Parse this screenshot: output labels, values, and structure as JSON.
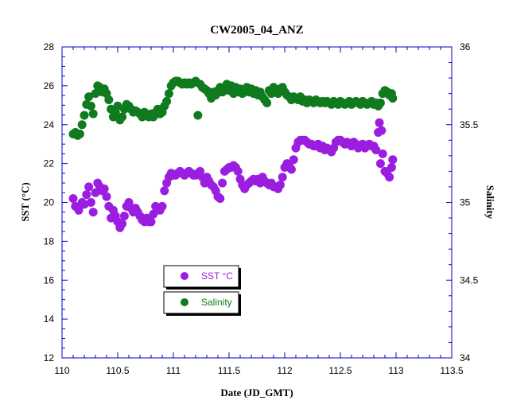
{
  "chart_data": {
    "type": "scatter",
    "title": "CW2005_04_ANZ",
    "xlabel": "Date (JD_GMT)",
    "ylabel_left": "SST (°C)",
    "ylabel_right": "Salinity",
    "xlim": [
      110,
      113.5
    ],
    "ylim_left": [
      12,
      28
    ],
    "ylim_right": [
      34,
      36
    ],
    "x_ticks": [
      "110",
      "110.5",
      "111",
      "111.5",
      "112",
      "112.5",
      "113",
      "113.5"
    ],
    "y_left_ticks": [
      "12",
      "14",
      "16",
      "18",
      "20",
      "22",
      "24",
      "26",
      "28"
    ],
    "y_right_ticks": [
      "34",
      "34.5",
      "35",
      "35.5",
      "36"
    ],
    "grid": false,
    "series": [
      {
        "name": "SST °C",
        "axis": "left",
        "color": "#9b1ee0",
        "points": [
          [
            110.1,
            20.2
          ],
          [
            110.12,
            19.8
          ],
          [
            110.15,
            19.6
          ],
          [
            110.18,
            20.0
          ],
          [
            110.2,
            19.9
          ],
          [
            110.22,
            20.4
          ],
          [
            110.24,
            20.8
          ],
          [
            110.26,
            20.0
          ],
          [
            110.28,
            19.5
          ],
          [
            110.3,
            20.5
          ],
          [
            110.32,
            21.0
          ],
          [
            110.34,
            20.8
          ],
          [
            110.36,
            20.6
          ],
          [
            110.38,
            20.7
          ],
          [
            110.4,
            20.3
          ],
          [
            110.42,
            19.8
          ],
          [
            110.44,
            19.2
          ],
          [
            110.46,
            19.6
          ],
          [
            110.48,
            19.3
          ],
          [
            110.5,
            19.0
          ],
          [
            110.52,
            18.7
          ],
          [
            110.54,
            18.9
          ],
          [
            110.56,
            19.3
          ],
          [
            110.58,
            19.8
          ],
          [
            110.6,
            20.0
          ],
          [
            110.62,
            19.7
          ],
          [
            110.64,
            19.5
          ],
          [
            110.66,
            19.7
          ],
          [
            110.68,
            19.5
          ],
          [
            110.7,
            19.3
          ],
          [
            110.72,
            19.1
          ],
          [
            110.74,
            19.0
          ],
          [
            110.76,
            19.2
          ],
          [
            110.78,
            19.0
          ],
          [
            110.8,
            19.0
          ],
          [
            110.82,
            19.4
          ],
          [
            110.84,
            19.8
          ],
          [
            110.86,
            19.7
          ],
          [
            110.88,
            19.6
          ],
          [
            110.9,
            19.8
          ],
          [
            110.92,
            20.6
          ],
          [
            110.94,
            21.0
          ],
          [
            110.96,
            21.3
          ],
          [
            110.98,
            21.5
          ],
          [
            111.0,
            21.4
          ],
          [
            111.02,
            21.4
          ],
          [
            111.04,
            21.5
          ],
          [
            111.06,
            21.6
          ],
          [
            111.08,
            21.5
          ],
          [
            111.1,
            21.4
          ],
          [
            111.12,
            21.5
          ],
          [
            111.14,
            21.6
          ],
          [
            111.16,
            21.5
          ],
          [
            111.18,
            21.4
          ],
          [
            111.2,
            21.4
          ],
          [
            111.22,
            21.5
          ],
          [
            111.24,
            21.6
          ],
          [
            111.26,
            21.3
          ],
          [
            111.28,
            21.0
          ],
          [
            111.3,
            21.3
          ],
          [
            111.32,
            21.1
          ],
          [
            111.34,
            20.9
          ],
          [
            111.36,
            20.8
          ],
          [
            111.38,
            20.6
          ],
          [
            111.4,
            20.3
          ],
          [
            111.42,
            20.2
          ],
          [
            111.44,
            21.0
          ],
          [
            111.46,
            21.6
          ],
          [
            111.48,
            21.7
          ],
          [
            111.5,
            21.8
          ],
          [
            111.52,
            21.8
          ],
          [
            111.54,
            21.9
          ],
          [
            111.56,
            21.8
          ],
          [
            111.58,
            21.6
          ],
          [
            111.6,
            21.2
          ],
          [
            111.62,
            20.9
          ],
          [
            111.64,
            20.7
          ],
          [
            111.66,
            20.9
          ],
          [
            111.68,
            21.0
          ],
          [
            111.7,
            21.1
          ],
          [
            111.72,
            21.2
          ],
          [
            111.74,
            21.1
          ],
          [
            111.76,
            21.2
          ],
          [
            111.78,
            21.0
          ],
          [
            111.8,
            21.3
          ],
          [
            111.82,
            21.1
          ],
          [
            111.84,
            21.0
          ],
          [
            111.86,
            20.9
          ],
          [
            111.88,
            21.0
          ],
          [
            111.9,
            20.8
          ],
          [
            111.92,
            20.8
          ],
          [
            111.94,
            20.7
          ],
          [
            111.96,
            20.9
          ],
          [
            111.98,
            21.3
          ],
          [
            112.0,
            21.8
          ],
          [
            112.02,
            22.0
          ],
          [
            112.04,
            21.9
          ],
          [
            112.06,
            21.7
          ],
          [
            112.08,
            22.2
          ],
          [
            112.1,
            22.8
          ],
          [
            112.12,
            23.1
          ],
          [
            112.14,
            23.2
          ],
          [
            112.16,
            23.2
          ],
          [
            112.18,
            23.2
          ],
          [
            112.2,
            23.1
          ],
          [
            112.22,
            23.0
          ],
          [
            112.24,
            23.0
          ],
          [
            112.26,
            22.9
          ],
          [
            112.28,
            22.9
          ],
          [
            112.3,
            23.0
          ],
          [
            112.32,
            22.8
          ],
          [
            112.34,
            22.9
          ],
          [
            112.36,
            22.7
          ],
          [
            112.38,
            22.8
          ],
          [
            112.4,
            22.7
          ],
          [
            112.42,
            22.6
          ],
          [
            112.44,
            22.8
          ],
          [
            112.46,
            23.1
          ],
          [
            112.48,
            23.2
          ],
          [
            112.5,
            23.2
          ],
          [
            112.52,
            23.1
          ],
          [
            112.54,
            23.0
          ],
          [
            112.56,
            23.1
          ],
          [
            112.58,
            23.0
          ],
          [
            112.6,
            22.9
          ],
          [
            112.62,
            23.1
          ],
          [
            112.64,
            23.0
          ],
          [
            112.66,
            22.8
          ],
          [
            112.68,
            22.9
          ],
          [
            112.7,
            23.0
          ],
          [
            112.72,
            22.8
          ],
          [
            112.74,
            22.9
          ],
          [
            112.76,
            23.0
          ],
          [
            112.78,
            22.9
          ],
          [
            112.8,
            22.9
          ],
          [
            112.82,
            22.7
          ],
          [
            112.84,
            23.6
          ],
          [
            112.85,
            24.1
          ],
          [
            112.86,
            22.0
          ],
          [
            112.87,
            23.7
          ],
          [
            112.88,
            22.5
          ],
          [
            112.9,
            21.6
          ],
          [
            112.92,
            21.5
          ],
          [
            112.94,
            21.3
          ],
          [
            112.96,
            21.8
          ],
          [
            112.97,
            22.2
          ]
        ]
      },
      {
        "name": "Salinity",
        "axis": "right",
        "color": "#0f7a1e",
        "points": [
          [
            110.1,
            35.44
          ],
          [
            110.12,
            35.45
          ],
          [
            110.14,
            35.43
          ],
          [
            110.16,
            35.44
          ],
          [
            110.18,
            35.5
          ],
          [
            110.2,
            35.56
          ],
          [
            110.22,
            35.63
          ],
          [
            110.24,
            35.68
          ],
          [
            110.26,
            35.62
          ],
          [
            110.28,
            35.57
          ],
          [
            110.3,
            35.7
          ],
          [
            110.32,
            35.75
          ],
          [
            110.34,
            35.74
          ],
          [
            110.36,
            35.71
          ],
          [
            110.38,
            35.73
          ],
          [
            110.4,
            35.7
          ],
          [
            110.42,
            35.66
          ],
          [
            110.44,
            35.6
          ],
          [
            110.46,
            35.55
          ],
          [
            110.48,
            35.58
          ],
          [
            110.5,
            35.62
          ],
          [
            110.52,
            35.53
          ],
          [
            110.54,
            35.55
          ],
          [
            110.56,
            35.6
          ],
          [
            110.58,
            35.63
          ],
          [
            110.6,
            35.62
          ],
          [
            110.62,
            35.6
          ],
          [
            110.64,
            35.58
          ],
          [
            110.66,
            35.59
          ],
          [
            110.68,
            35.58
          ],
          [
            110.7,
            35.57
          ],
          [
            110.72,
            35.55
          ],
          [
            110.74,
            35.58
          ],
          [
            110.76,
            35.56
          ],
          [
            110.78,
            35.55
          ],
          [
            110.8,
            35.57
          ],
          [
            110.82,
            35.55
          ],
          [
            110.84,
            35.58
          ],
          [
            110.86,
            35.6
          ],
          [
            110.88,
            35.57
          ],
          [
            110.9,
            35.58
          ],
          [
            110.92,
            35.62
          ],
          [
            110.94,
            35.65
          ],
          [
            110.96,
            35.7
          ],
          [
            110.98,
            35.75
          ],
          [
            111.0,
            35.77
          ],
          [
            111.02,
            35.78
          ],
          [
            111.04,
            35.78
          ],
          [
            111.06,
            35.77
          ],
          [
            111.08,
            35.76
          ],
          [
            111.1,
            35.77
          ],
          [
            111.12,
            35.76
          ],
          [
            111.14,
            35.77
          ],
          [
            111.16,
            35.76
          ],
          [
            111.18,
            35.77
          ],
          [
            111.2,
            35.78
          ],
          [
            111.22,
            35.56
          ],
          [
            111.24,
            35.76
          ],
          [
            111.26,
            35.74
          ],
          [
            111.28,
            35.73
          ],
          [
            111.3,
            35.72
          ],
          [
            111.32,
            35.7
          ],
          [
            111.34,
            35.67
          ],
          [
            111.36,
            35.71
          ],
          [
            111.38,
            35.69
          ],
          [
            111.4,
            35.72
          ],
          [
            111.42,
            35.74
          ],
          [
            111.44,
            35.71
          ],
          [
            111.46,
            35.73
          ],
          [
            111.48,
            35.76
          ],
          [
            111.5,
            35.72
          ],
          [
            111.52,
            35.75
          ],
          [
            111.54,
            35.7
          ],
          [
            111.56,
            35.74
          ],
          [
            111.58,
            35.71
          ],
          [
            111.6,
            35.73
          ],
          [
            111.62,
            35.7
          ],
          [
            111.64,
            35.72
          ],
          [
            111.66,
            35.74
          ],
          [
            111.68,
            35.71
          ],
          [
            111.7,
            35.73
          ],
          [
            111.72,
            35.7
          ],
          [
            111.74,
            35.72
          ],
          [
            111.76,
            35.69
          ],
          [
            111.78,
            35.71
          ],
          [
            111.8,
            35.68
          ],
          [
            111.82,
            35.66
          ],
          [
            111.84,
            35.64
          ],
          [
            111.86,
            35.72
          ],
          [
            111.88,
            35.7
          ],
          [
            111.9,
            35.74
          ],
          [
            111.92,
            35.71
          ],
          [
            111.94,
            35.7
          ],
          [
            111.96,
            35.73
          ],
          [
            111.98,
            35.74
          ],
          [
            112.0,
            35.71
          ],
          [
            112.02,
            35.69
          ],
          [
            112.04,
            35.68
          ],
          [
            112.06,
            35.66
          ],
          [
            112.08,
            35.68
          ],
          [
            112.1,
            35.67
          ],
          [
            112.12,
            35.66
          ],
          [
            112.14,
            35.68
          ],
          [
            112.16,
            35.65
          ],
          [
            112.18,
            35.66
          ],
          [
            112.2,
            35.64
          ],
          [
            112.22,
            35.66
          ],
          [
            112.24,
            35.65
          ],
          [
            112.26,
            35.64
          ],
          [
            112.28,
            35.66
          ],
          [
            112.3,
            35.65
          ],
          [
            112.32,
            35.64
          ],
          [
            112.34,
            35.65
          ],
          [
            112.36,
            35.64
          ],
          [
            112.38,
            35.65
          ],
          [
            112.4,
            35.64
          ],
          [
            112.42,
            35.63
          ],
          [
            112.44,
            35.65
          ],
          [
            112.46,
            35.64
          ],
          [
            112.48,
            35.63
          ],
          [
            112.5,
            35.65
          ],
          [
            112.52,
            35.64
          ],
          [
            112.54,
            35.63
          ],
          [
            112.56,
            35.64
          ],
          [
            112.58,
            35.65
          ],
          [
            112.6,
            35.63
          ],
          [
            112.62,
            35.64
          ],
          [
            112.64,
            35.65
          ],
          [
            112.66,
            35.64
          ],
          [
            112.68,
            35.63
          ],
          [
            112.7,
            35.65
          ],
          [
            112.72,
            35.64
          ],
          [
            112.74,
            35.63
          ],
          [
            112.76,
            35.64
          ],
          [
            112.78,
            35.65
          ],
          [
            112.8,
            35.63
          ],
          [
            112.82,
            35.64
          ],
          [
            112.84,
            35.62
          ],
          [
            112.86,
            35.64
          ],
          [
            112.88,
            35.7
          ],
          [
            112.9,
            35.72
          ],
          [
            112.92,
            35.71
          ],
          [
            112.94,
            35.69
          ],
          [
            112.96,
            35.7
          ],
          [
            112.97,
            35.67
          ]
        ]
      }
    ],
    "legend": {
      "placement": "lower-left-inside",
      "entries": [
        {
          "label": "SST °C",
          "color": "#9b1ee0",
          "text_color": "#9b1ee0"
        },
        {
          "label": "Salinity",
          "color": "#0f7a1e",
          "text_color": "#0f7a1e"
        }
      ]
    },
    "colors": {
      "axis": "#0000c8",
      "text": "#000000"
    }
  }
}
